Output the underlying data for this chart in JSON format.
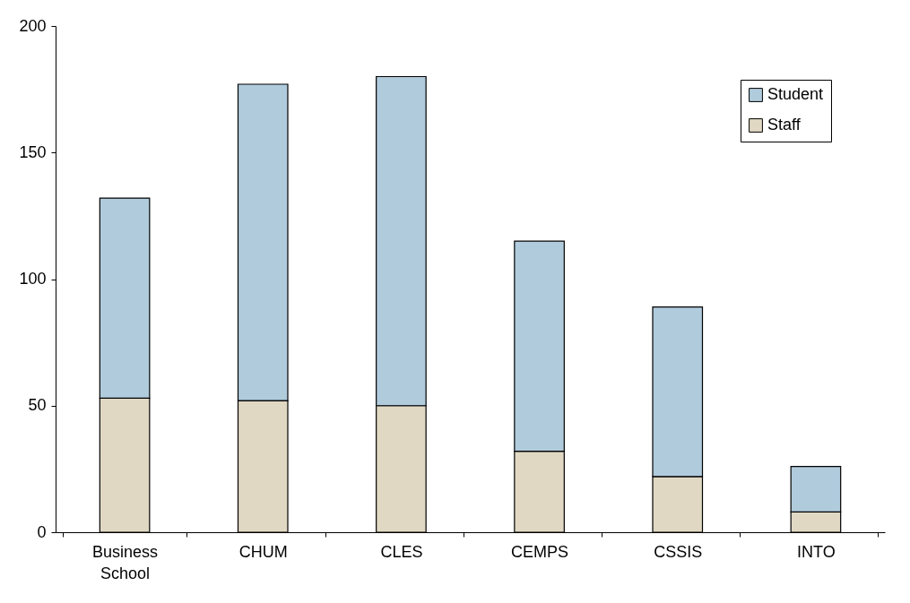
{
  "chart_data": {
    "type": "bar",
    "stacked": true,
    "categories": [
      "Business School",
      "CHUM",
      "CLES",
      "CEMPS",
      "CSSIS",
      "INTO"
    ],
    "series": [
      {
        "name": "Staff",
        "color": "#e0d8c3",
        "values": [
          53,
          52,
          50,
          32,
          22,
          8
        ]
      },
      {
        "name": "Student",
        "color": "#b0cbdc",
        "values": [
          79,
          125,
          130,
          83,
          67,
          18
        ]
      }
    ],
    "ylim": [
      0,
      200
    ],
    "yticks": [
      0,
      50,
      100,
      150,
      200
    ],
    "grid": false,
    "legend": "top right"
  }
}
